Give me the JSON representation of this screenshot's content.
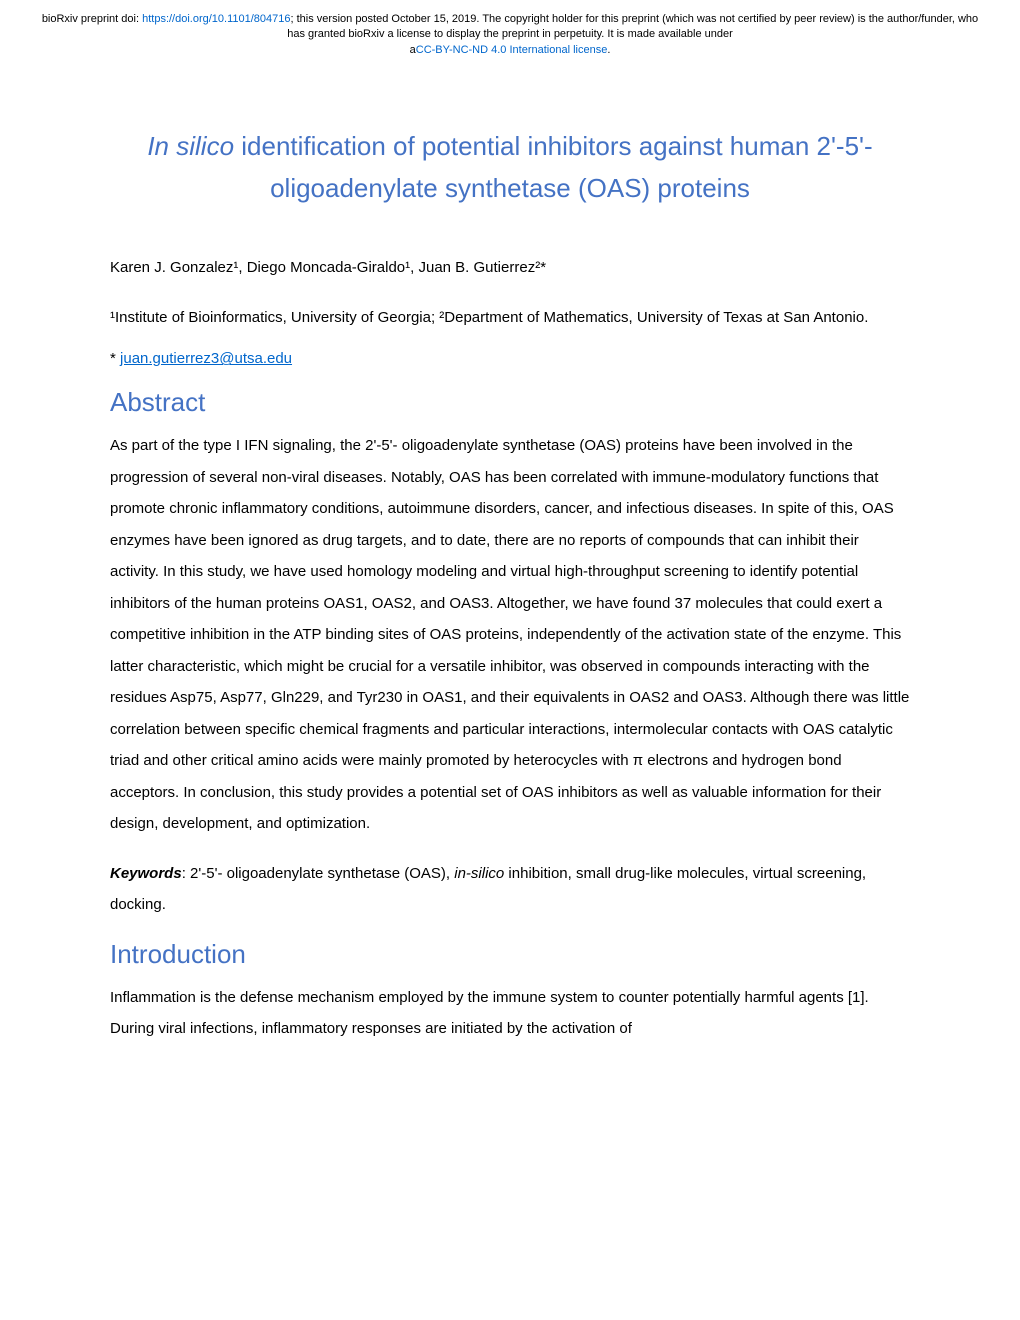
{
  "preprint": {
    "prefix": "bioRxiv preprint doi: ",
    "doi_url": "https://doi.org/10.1101/804716",
    "version_text": "; this version posted October 15, 2019. The copyright holder for this preprint (which was not certified by peer review) is the author/funder, who has granted bioRxiv a license to display the preprint in perpetuity. It is made available under",
    "license_prefix": "a",
    "license_text": "CC-BY-NC-ND 4.0 International license",
    "license_suffix": "."
  },
  "title": {
    "italic_part": "In silico",
    "rest": " identification of potential inhibitors against human 2'-5'-oligoadenylate synthetase (OAS) proteins"
  },
  "authors": "Karen J. Gonzalez¹, Diego Moncada-Giraldo¹, Juan B. Gutierrez²*",
  "affiliations": "¹Institute of Bioinformatics, University of Georgia; ²Department of Mathematics, University of Texas at San Antonio.",
  "correspondence": {
    "prefix": "* ",
    "email": "juan.gutierrez3@utsa.edu"
  },
  "abstract": {
    "heading": "Abstract",
    "text": "As part of the type I IFN signaling, the 2'-5'- oligoadenylate synthetase (OAS) proteins have been involved in the progression of several non-viral diseases. Notably, OAS has been correlated with immune-modulatory functions that promote chronic inflammatory conditions, autoimmune disorders, cancer, and infectious diseases. In spite of this, OAS enzymes have been ignored as drug targets, and to date, there are no reports of compounds that can inhibit their activity. In this study, we have used homology modeling and virtual high-throughput screening to identify potential inhibitors of the human proteins OAS1, OAS2, and OAS3. Altogether, we have found 37 molecules that could exert a competitive inhibition in the ATP binding sites of OAS proteins, independently of the activation state of the enzyme. This latter characteristic, which might be crucial for a versatile inhibitor, was observed in compounds interacting with the residues Asp75, Asp77, Gln229, and Tyr230 in OAS1, and their equivalents in OAS2 and OAS3. Although there was little correlation between specific chemical fragments and particular interactions, intermolecular contacts with OAS catalytic triad and other critical amino acids were mainly promoted by heterocycles with π electrons and hydrogen bond acceptors. In conclusion, this study provides a potential set of OAS inhibitors as well as valuable information for their design, development, and optimization."
  },
  "keywords": {
    "label": "Keywords",
    "text_before": ": 2'-5'- oligoadenylate synthetase (OAS), ",
    "in_silico": "in-silico",
    "text_after": " inhibition, small drug-like molecules, virtual screening, docking."
  },
  "introduction": {
    "heading": "Introduction",
    "text": "Inflammation is the defense mechanism employed by the immune system to counter potentially harmful agents [1]. During viral infections, inflammatory responses are initiated by the activation of"
  }
}
